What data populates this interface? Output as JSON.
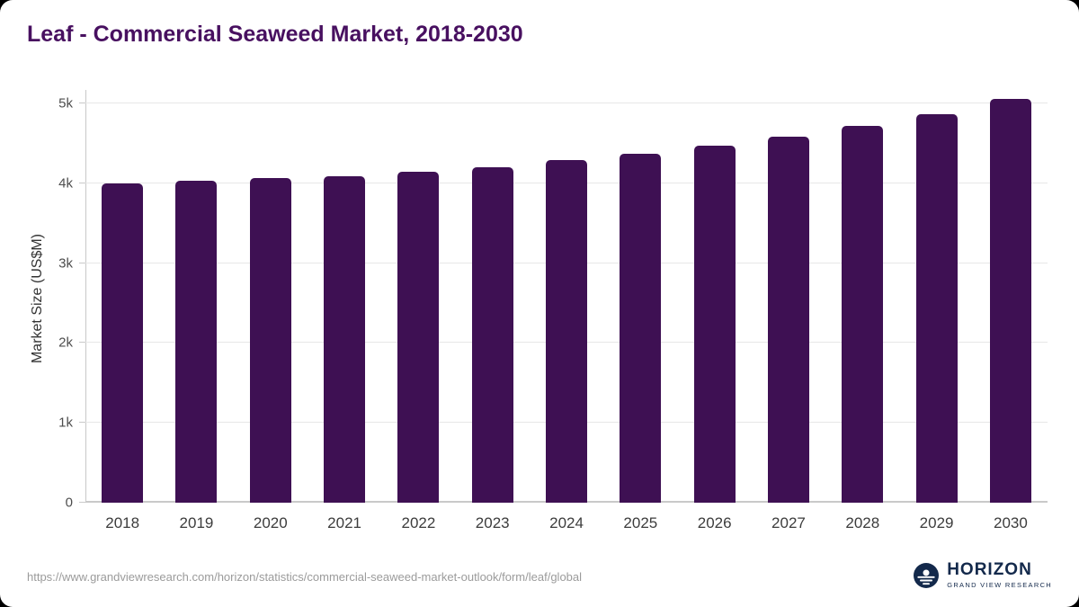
{
  "title": "Leaf - Commercial Seaweed Market, 2018-2030",
  "chart_data": {
    "type": "bar",
    "title": "Leaf - Commercial Seaweed Market, 2018-2030",
    "categories": [
      "2018",
      "2019",
      "2020",
      "2021",
      "2022",
      "2023",
      "2024",
      "2025",
      "2026",
      "2027",
      "2028",
      "2029",
      "2030"
    ],
    "values": [
      4000,
      4030,
      4060,
      4090,
      4140,
      4200,
      4290,
      4370,
      4470,
      4580,
      4720,
      4870,
      5060
    ],
    "xlabel": "",
    "ylabel": "Market Size (US$M)",
    "ylim": [
      0,
      5200
    ],
    "yticks": [
      0,
      1000,
      2000,
      3000,
      4000,
      5000
    ],
    "ytick_labels": [
      "0",
      "1k",
      "2k",
      "3k",
      "4k",
      "5k"
    ],
    "grid": true,
    "legend": "none",
    "bar_color": "#3e1053"
  },
  "footer": {
    "source_url": "https://www.grandviewresearch.com/horizon/statistics/commercial-seaweed-market-outlook/form/leaf/global",
    "logo_name": "HORIZON",
    "logo_subtext": "GRAND VIEW RESEARCH"
  },
  "colors": {
    "title": "#481060",
    "bar": "#3e1053",
    "gridline": "#e7e7e7",
    "axis": "#c9c9c9",
    "tick_label": "#4d4d4d",
    "url_text": "#9b9b9b",
    "logo": "#13294b"
  }
}
